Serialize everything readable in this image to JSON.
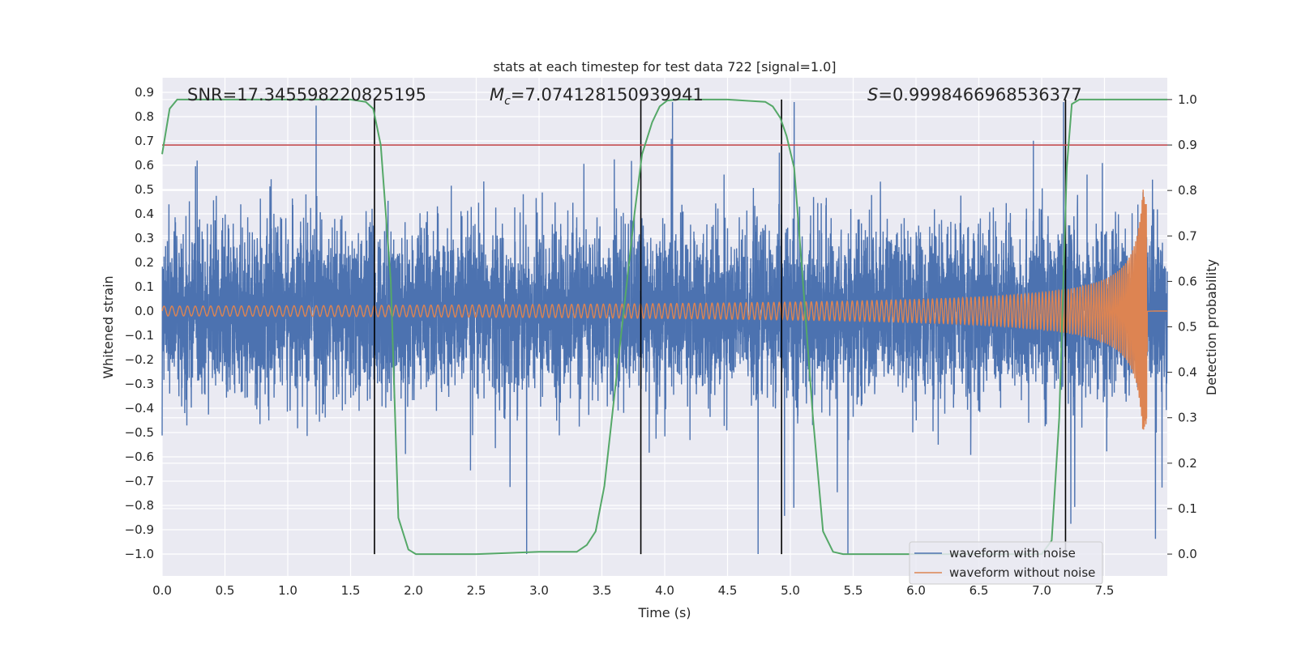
{
  "chart_data": {
    "type": "line",
    "title": "stats at each timestep for test data 722 [signal=1.0]",
    "xlabel": "Time (s)",
    "ylabel": "Whitened strain",
    "y2label": "Detection probability",
    "xlim": [
      0.0,
      8.0
    ],
    "ylim": [
      -1.09,
      0.96
    ],
    "y2lim": [
      -0.048,
      1.048
    ],
    "x_ticks": [
      0.0,
      0.5,
      1.0,
      1.5,
      2.0,
      2.5,
      3.0,
      3.5,
      4.0,
      4.5,
      5.0,
      5.5,
      6.0,
      6.5,
      7.0,
      7.5
    ],
    "x_tick_labels": [
      "0.0",
      "0.5",
      "1.0",
      "1.5",
      "2.0",
      "2.5",
      "3.0",
      "3.5",
      "4.0",
      "4.5",
      "5.0",
      "5.5",
      "6.0",
      "6.5",
      "7.0",
      "7.5"
    ],
    "y_ticks": [
      0.9,
      0.8,
      0.7,
      0.6,
      0.5,
      0.4,
      0.3,
      0.2,
      0.1,
      0.0,
      -0.1,
      -0.2,
      -0.3,
      -0.4,
      -0.5,
      -0.6,
      -0.7,
      -0.8,
      -0.9,
      -1.0
    ],
    "y_tick_labels": [
      "0.9",
      "0.8",
      "0.7",
      "0.6",
      "0.5",
      "0.4",
      "0.3",
      "0.2",
      "0.1",
      "0.0",
      "−0.1",
      "−0.2",
      "−0.3",
      "−0.4",
      "−0.5",
      "−0.6",
      "−0.7",
      "−0.8",
      "−0.9",
      "−1.0"
    ],
    "y2_ticks": [
      1.0,
      0.9,
      0.8,
      0.7,
      0.6,
      0.5,
      0.4,
      0.3,
      0.2,
      0.1,
      0.0
    ],
    "y2_tick_labels": [
      "1.0",
      "0.9",
      "0.8",
      "0.7",
      "0.6",
      "0.5",
      "0.4",
      "0.3",
      "0.2",
      "0.1",
      "0.0"
    ],
    "annotations": {
      "snr": "SNR=17.345598220825195",
      "mc_symbol": "M",
      "mc_sub": "c",
      "mc_value": "=7.074128150939941",
      "s_symbol": "S",
      "s_value": "=0.9998466968536377"
    },
    "threshold": {
      "axis": "y2",
      "value": 0.9,
      "color": "#c44e52"
    },
    "vertical_lines": [
      1.69,
      3.81,
      4.93,
      7.19
    ],
    "series": [
      {
        "name": "waveform with noise",
        "color": "#4c72b0",
        "description": "noisy whitened strain, roughly +/-0.3 spread with spikes to ~0.85 and -1.0",
        "envelope_typical": 0.3,
        "max_spike": 0.86,
        "min_spike": -1.0,
        "t_end": 8.0
      },
      {
        "name": "waveform without noise",
        "color": "#dd8452",
        "description": "chirp signal growing in amplitude and frequency, merging near t=7.84 s",
        "amp_start": 0.02,
        "amp_peak_pos": 0.44,
        "amp_peak_neg": -0.52,
        "t_merger": 7.84,
        "freq_start_hz": 16
      },
      {
        "name": "detection probability",
        "axis": "y2",
        "color": "#55a868",
        "x": [
          0.0,
          0.06,
          0.12,
          0.5,
          1.0,
          1.5,
          1.62,
          1.68,
          1.74,
          1.82,
          1.88,
          1.96,
          2.02,
          2.5,
          3.0,
          3.3,
          3.38,
          3.45,
          3.52,
          3.6,
          3.68,
          3.76,
          3.82,
          3.9,
          3.96,
          4.02,
          4.1,
          4.5,
          4.8,
          4.86,
          4.92,
          4.97,
          5.03,
          5.1,
          5.18,
          5.26,
          5.34,
          5.42,
          5.5,
          6.0,
          6.6,
          7.0,
          7.08,
          7.14,
          7.2,
          7.24,
          7.3,
          7.4,
          8.0
        ],
        "y": [
          0.88,
          0.98,
          1.0,
          1.0,
          1.0,
          1.0,
          0.995,
          0.98,
          0.9,
          0.6,
          0.08,
          0.01,
          0.0,
          0.0,
          0.005,
          0.005,
          0.02,
          0.05,
          0.15,
          0.35,
          0.55,
          0.75,
          0.88,
          0.95,
          0.985,
          0.998,
          1.0,
          1.0,
          0.995,
          0.985,
          0.96,
          0.92,
          0.85,
          0.6,
          0.3,
          0.05,
          0.005,
          0.0,
          0.0,
          0.0,
          0.0,
          0.0,
          0.03,
          0.3,
          0.85,
          0.99,
          1.0,
          1.0,
          1.0
        ]
      }
    ],
    "legend": {
      "placement": "lower-right",
      "entries": [
        "waveform with noise",
        "waveform without noise"
      ]
    }
  }
}
